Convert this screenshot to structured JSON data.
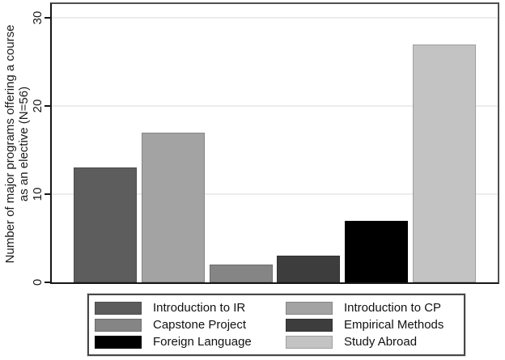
{
  "figure": {
    "background_color": "#ffffff",
    "frame_color": "#4f4f4f",
    "axis_color": "#161616",
    "grid_color": "#ececec"
  },
  "chart_data": {
    "type": "bar",
    "title": "",
    "xlabel": "",
    "ylabel_lines": [
      "Number of major programs offering a course",
      "as an elective (N=56)"
    ],
    "ylim": [
      0,
      30
    ],
    "yticks": [
      "0",
      "10",
      "20",
      "30"
    ],
    "grid": "horizontal gridlines at 10, 20, 30",
    "legend_position": "bottom boxed, 2 columns, 3 rows",
    "categories": [
      "Introduction to IR",
      "Introduction to CP",
      "Capstone Project",
      "Empirical Methods",
      "Foreign Language",
      "Study Abroad"
    ],
    "values": [
      13,
      17,
      2,
      3,
      7,
      27
    ],
    "bars": [
      {
        "label": "Introduction to IR",
        "value": 13,
        "color": "#5d5d5d"
      },
      {
        "label": "Introduction to CP",
        "value": 17,
        "color": "#a3a3a3"
      },
      {
        "label": "Capstone Project",
        "value": 2,
        "color": "#858585"
      },
      {
        "label": "Empirical Methods",
        "value": 3,
        "color": "#3d3d3d"
      },
      {
        "label": "Foreign Language",
        "value": 7,
        "color": "#000000"
      },
      {
        "label": "Study Abroad",
        "value": 27,
        "color": "#c3c3c3"
      }
    ]
  }
}
